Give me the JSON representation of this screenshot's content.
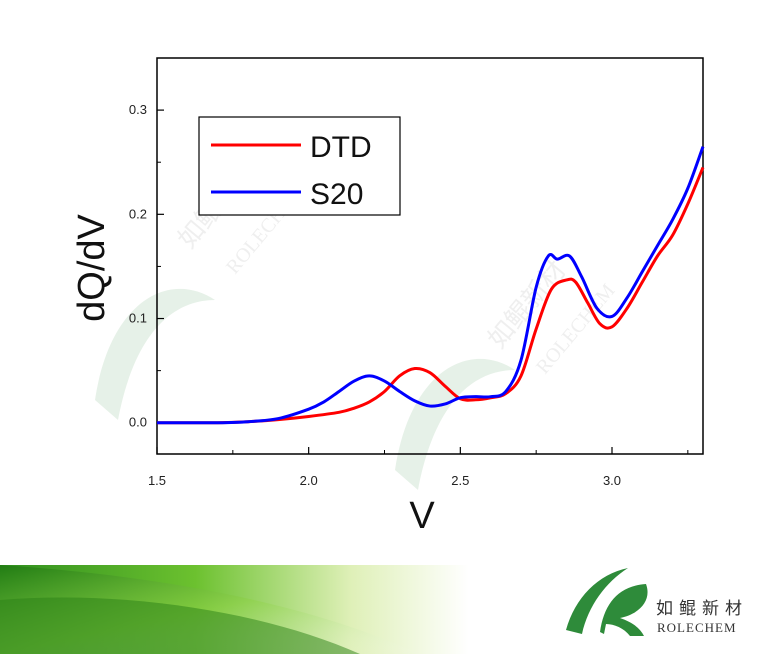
{
  "chart_data": {
    "type": "line",
    "xlabel": "V",
    "ylabel": "dQ/dV",
    "xlim": [
      1.5,
      3.3
    ],
    "ylim": [
      -0.03,
      0.35
    ],
    "xticks": [
      "1.5",
      "2.0",
      "2.5",
      "3.0"
    ],
    "xtick_values": [
      1.5,
      2.0,
      2.5,
      3.0
    ],
    "yticks": [
      "0.0",
      "0.1",
      "0.2",
      "0.3"
    ],
    "ytick_values": [
      0.0,
      0.1,
      0.2,
      0.3
    ],
    "grid": false,
    "legend_position": "top-left",
    "series": [
      {
        "name": "DTD",
        "color": "#ff0000",
        "points": [
          [
            1.5,
            0.0
          ],
          [
            1.6,
            0.0
          ],
          [
            1.7,
            0.0
          ],
          [
            1.8,
            0.001
          ],
          [
            1.9,
            0.003
          ],
          [
            2.0,
            0.006
          ],
          [
            2.1,
            0.01
          ],
          [
            2.15,
            0.014
          ],
          [
            2.2,
            0.02
          ],
          [
            2.25,
            0.03
          ],
          [
            2.3,
            0.045
          ],
          [
            2.35,
            0.052
          ],
          [
            2.4,
            0.048
          ],
          [
            2.45,
            0.035
          ],
          [
            2.5,
            0.023
          ],
          [
            2.55,
            0.022
          ],
          [
            2.6,
            0.024
          ],
          [
            2.65,
            0.028
          ],
          [
            2.7,
            0.045
          ],
          [
            2.75,
            0.09
          ],
          [
            2.8,
            0.128
          ],
          [
            2.85,
            0.137
          ],
          [
            2.88,
            0.135
          ],
          [
            2.92,
            0.115
          ],
          [
            2.96,
            0.095
          ],
          [
            3.0,
            0.092
          ],
          [
            3.05,
            0.11
          ],
          [
            3.1,
            0.135
          ],
          [
            3.15,
            0.16
          ],
          [
            3.2,
            0.18
          ],
          [
            3.25,
            0.21
          ],
          [
            3.3,
            0.245
          ]
        ]
      },
      {
        "name": "S20",
        "color": "#0000ff",
        "points": [
          [
            1.5,
            0.0
          ],
          [
            1.6,
            0.0
          ],
          [
            1.7,
            0.0
          ],
          [
            1.8,
            0.001
          ],
          [
            1.9,
            0.004
          ],
          [
            2.0,
            0.013
          ],
          [
            2.05,
            0.02
          ],
          [
            2.1,
            0.03
          ],
          [
            2.15,
            0.04
          ],
          [
            2.2,
            0.045
          ],
          [
            2.25,
            0.04
          ],
          [
            2.3,
            0.03
          ],
          [
            2.35,
            0.021
          ],
          [
            2.4,
            0.016
          ],
          [
            2.45,
            0.018
          ],
          [
            2.5,
            0.024
          ],
          [
            2.55,
            0.025
          ],
          [
            2.6,
            0.025
          ],
          [
            2.65,
            0.03
          ],
          [
            2.7,
            0.06
          ],
          [
            2.75,
            0.13
          ],
          [
            2.79,
            0.16
          ],
          [
            2.82,
            0.157
          ],
          [
            2.86,
            0.16
          ],
          [
            2.9,
            0.14
          ],
          [
            2.95,
            0.11
          ],
          [
            3.0,
            0.102
          ],
          [
            3.05,
            0.12
          ],
          [
            3.1,
            0.145
          ],
          [
            3.15,
            0.17
          ],
          [
            3.2,
            0.195
          ],
          [
            3.25,
            0.225
          ],
          [
            3.3,
            0.265
          ]
        ]
      }
    ]
  },
  "watermark": {
    "cn": "如鲲新材",
    "en": "ROLECHEM"
  },
  "brand": {
    "cn": "如鲲新材",
    "en": "ROLECHEM",
    "logo_color": "#2e8b3a",
    "banner_color": "#3ea028"
  }
}
